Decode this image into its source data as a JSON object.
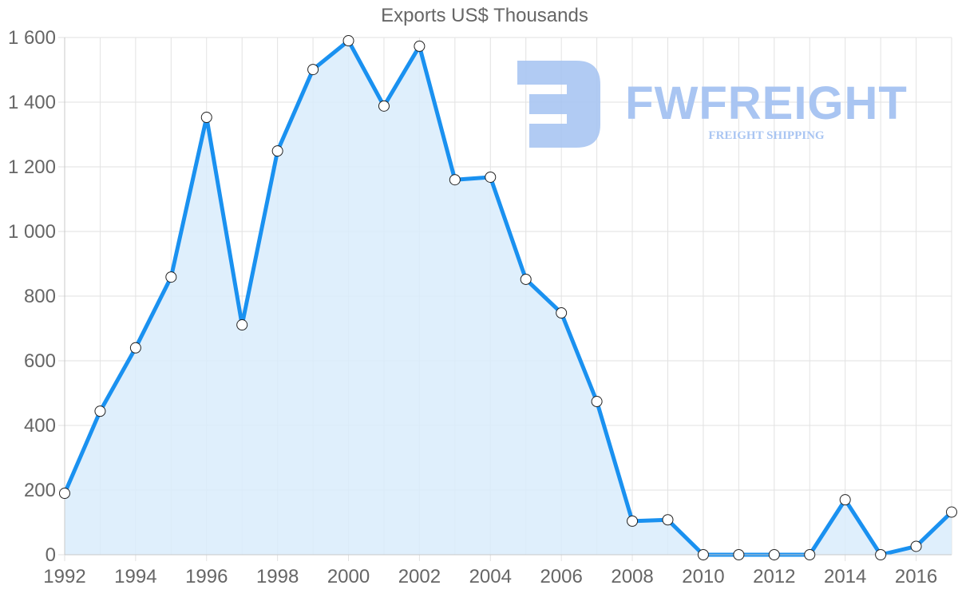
{
  "chart_data": {
    "type": "area",
    "title": "Exports US$ Thousands",
    "xlabel": "",
    "ylabel": "",
    "x": [
      1992,
      1993,
      1994,
      1995,
      1996,
      1997,
      1998,
      1999,
      2000,
      2001,
      2002,
      2003,
      2004,
      2005,
      2006,
      2007,
      2008,
      2009,
      2010,
      2011,
      2012,
      2013,
      2014,
      2015,
      2016,
      2017
    ],
    "series": [
      {
        "name": "Exports US$ Thousands",
        "values": [
          190,
          444,
          640,
          859,
          1353,
          711,
          1249,
          1501,
          1590,
          1388,
          1573,
          1160,
          1168,
          852,
          748,
          474,
          104,
          108,
          0,
          0,
          0,
          0,
          170,
          0,
          26,
          132
        ]
      }
    ],
    "x_tick_labels": [
      "1992",
      "1994",
      "1996",
      "1998",
      "2000",
      "2002",
      "2004",
      "2006",
      "2008",
      "2010",
      "2012",
      "2014",
      "2016"
    ],
    "y_tick_labels": [
      "0",
      "200",
      "400",
      "600",
      "800",
      "1 000",
      "1 200",
      "1 400",
      "1 600"
    ],
    "y_ticks": [
      0,
      200,
      400,
      600,
      800,
      1000,
      1200,
      1400,
      1600
    ],
    "ylim": [
      0,
      1600
    ],
    "xlim": [
      1992,
      2017
    ],
    "grid": true,
    "legend": "none",
    "colors": {
      "line": "#1a91f0",
      "fill": "#d9ecfc",
      "point_fill": "#ffffff",
      "point_stroke": "#222222",
      "grid": "#e2e2e2",
      "tick_text": "#666666"
    }
  },
  "watermark": {
    "brand": "FWFREIGHT",
    "tagline": "FREIGHT SHIPPING",
    "color": "#a9c5f2"
  }
}
